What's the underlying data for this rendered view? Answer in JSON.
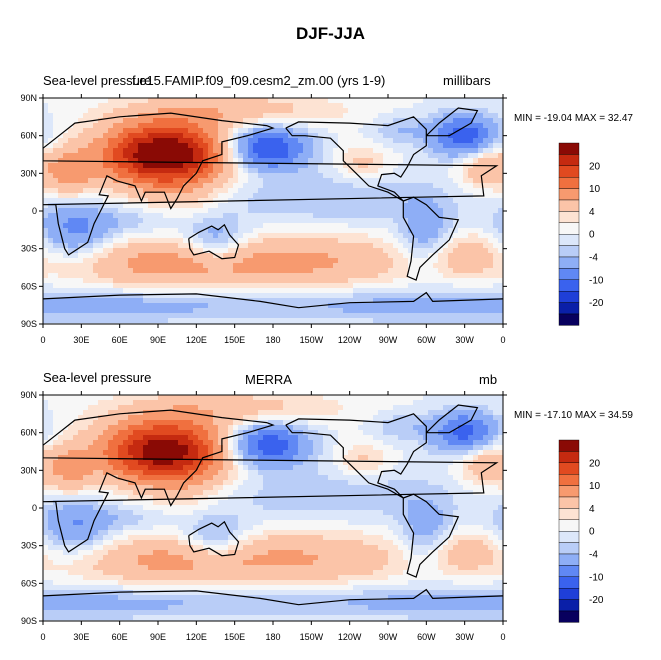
{
  "title": "DJF-JJA",
  "colors": {
    "levels": [
      "#08005e",
      "#0a1fa8",
      "#1f3fd8",
      "#3a62ee",
      "#6088f4",
      "#8eaef6",
      "#b9cdf7",
      "#dce7fa",
      "#f7f7f7",
      "#fde3d3",
      "#fbc4a8",
      "#f79a6f",
      "#f0703f",
      "#e14a20",
      "#c52a10",
      "#8a0a05"
    ],
    "coast": "#000000"
  },
  "chart_data": [
    {
      "type": "heatmap",
      "variable": "Sea-level pressure",
      "left_label": "Sea-level pressure",
      "center_label": "f.e15.FAMIP.f09_f09.cesm2_zm.00 (yrs 1-9)",
      "right_label": "millibars",
      "min_max": "MIN = -19.04 MAX =  32.47",
      "min": -19.04,
      "max": 32.47,
      "x_ticks": [
        "0",
        "30E",
        "60E",
        "90E",
        "120E",
        "150E",
        "180",
        "150W",
        "120W",
        "90W",
        "60W",
        "30W",
        "0"
      ],
      "y_ticks": [
        "90N",
        "60N",
        "30N",
        "0",
        "30S",
        "60S",
        "90S"
      ],
      "colorbar_labels": [
        "20",
        "10",
        "4",
        "0",
        "-4",
        "-10",
        "-20"
      ],
      "scale": 1.0
    },
    {
      "type": "heatmap",
      "variable": "Sea-level pressure",
      "left_label": "Sea-level pressure",
      "center_label": "MERRA",
      "right_label": "mb",
      "min_max": "MIN = -17.10 MAX =  34.59",
      "min": -17.1,
      "max": 34.59,
      "x_ticks": [
        "0",
        "30E",
        "60E",
        "90E",
        "120E",
        "150E",
        "180",
        "150W",
        "120W",
        "90W",
        "60W",
        "30W",
        "0"
      ],
      "y_ticks": [
        "90N",
        "60N",
        "30N",
        "0",
        "30S",
        "60S",
        "90S"
      ],
      "colorbar_labels": [
        "20",
        "10",
        "4",
        "0",
        "-4",
        "-10",
        "-20"
      ],
      "scale": 0.92
    }
  ]
}
